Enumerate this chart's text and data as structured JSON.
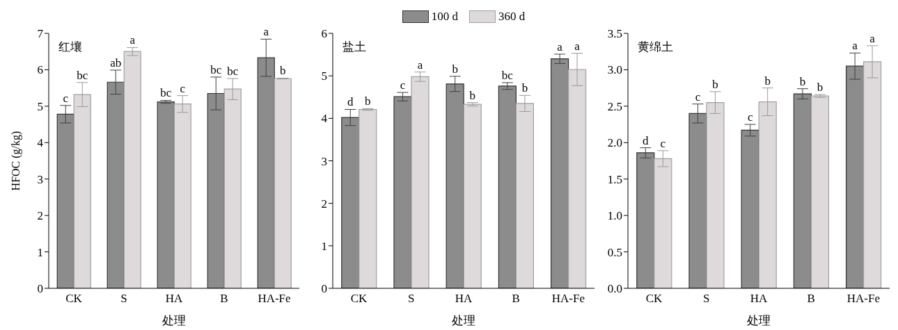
{
  "chart_data": [
    {
      "type": "bar",
      "title": "红壤",
      "xlabel": "处理",
      "ylabel": "HFOC (g/kg)",
      "categories": [
        "CK",
        "S",
        "HA",
        "B",
        "HA-Fe"
      ],
      "ylim": [
        0,
        7
      ],
      "yticks": [
        0,
        1,
        2,
        3,
        4,
        5,
        6,
        7
      ],
      "grid": false,
      "legend": false,
      "series": [
        {
          "color": "#8c8c8c",
          "values": [
            4.78,
            5.66,
            5.12,
            5.35,
            6.33
          ],
          "errors": [
            0.24,
            0.33,
            0.04,
            0.45,
            0.51
          ],
          "value_labels": [
            "c",
            "ab",
            "bc",
            "bc",
            "a"
          ]
        },
        {
          "color": "#dedadb",
          "values": [
            5.32,
            6.5,
            5.06,
            5.47,
            5.76
          ],
          "errors": [
            0.33,
            0.11,
            0.23,
            0.29,
            0.01
          ],
          "value_labels": [
            "bc",
            "a",
            "c",
            "bc",
            "b"
          ]
        }
      ]
    },
    {
      "type": "bar",
      "title": "盐土",
      "xlabel": "处理",
      "categories": [
        "CK",
        "S",
        "HA",
        "B",
        "HA-Fe"
      ],
      "ylim": [
        0,
        6
      ],
      "yticks": [
        0,
        1,
        2,
        3,
        4,
        5,
        6
      ],
      "grid": false,
      "legend": "top",
      "series": [
        {
          "name": "100 d",
          "color": "#8c8c8c",
          "values": [
            4.02,
            4.51,
            4.81,
            4.76,
            5.4
          ],
          "errors": [
            0.19,
            0.1,
            0.18,
            0.08,
            0.11
          ],
          "value_labels": [
            "d",
            "c",
            "b",
            "bc",
            "a"
          ]
        },
        {
          "name": "360 d",
          "color": "#dedadb",
          "values": [
            4.21,
            4.98,
            4.33,
            4.35,
            5.15
          ],
          "errors": [
            0.02,
            0.11,
            0.04,
            0.19,
            0.38
          ],
          "value_labels": [
            "b",
            "a",
            "b",
            "b",
            "a"
          ]
        }
      ]
    },
    {
      "type": "bar",
      "title": "黄绵土",
      "xlabel": "处理",
      "categories": [
        "CK",
        "S",
        "HA",
        "B",
        "HA-Fe"
      ],
      "ylim": [
        0,
        3.5
      ],
      "yticks": [
        {
          "value": 0,
          "label": "0.0"
        },
        {
          "value": 0.5,
          "label": "0.5"
        },
        {
          "value": 1,
          "label": "1.0"
        },
        {
          "value": 1.5,
          "label": "1.5"
        },
        {
          "value": 2,
          "label": "2.0"
        },
        {
          "value": 2.5,
          "label": "2.5"
        },
        {
          "value": 3,
          "label": "3.0"
        },
        {
          "value": 3.5,
          "label": "3.5"
        }
      ],
      "grid": false,
      "legend": false,
      "series": [
        {
          "color": "#8c8c8c",
          "values": [
            1.86,
            2.4,
            2.17,
            2.67,
            3.05
          ],
          "errors": [
            0.07,
            0.13,
            0.08,
            0.07,
            0.18
          ],
          "value_labels": [
            "d",
            "c",
            "c",
            "b",
            "a"
          ]
        },
        {
          "color": "#dedadb",
          "values": [
            1.78,
            2.55,
            2.56,
            2.64,
            3.11
          ],
          "errors": [
            0.11,
            0.15,
            0.19,
            0.02,
            0.22
          ],
          "value_labels": [
            "c",
            "b",
            "b",
            "b",
            "a"
          ]
        }
      ]
    }
  ]
}
